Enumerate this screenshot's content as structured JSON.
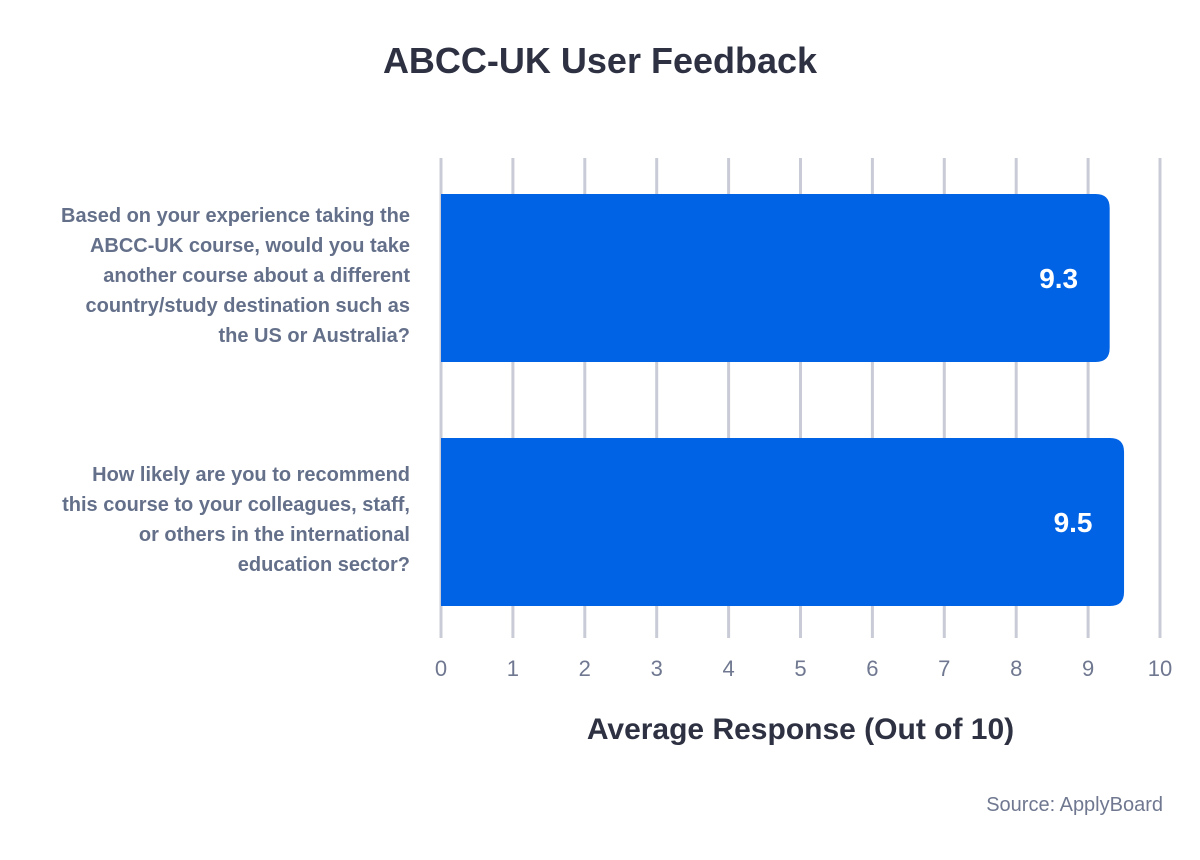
{
  "chart_data": {
    "type": "bar",
    "orientation": "horizontal",
    "title": "ABCC-UK User Feedback",
    "xlabel": "Average Response (Out of 10)",
    "ylabel": "",
    "xlim": [
      0,
      10
    ],
    "ticks": [
      "0",
      "1",
      "2",
      "3",
      "4",
      "5",
      "6",
      "7",
      "8",
      "9",
      "10"
    ],
    "grid": true,
    "categories": [
      "Based on your experience taking the ABCC-UK course, would you take another course about a different country/study destination such as the US or Australia?",
      "How likely are you to recommend this course to your colleagues, staff, or others in the international education sector?"
    ],
    "category_lines": [
      [
        "Based on your experience taking the",
        "ABCC-UK course, would you take",
        "another course about a different",
        "country/study destination such as",
        "the US or Australia?"
      ],
      [
        "How likely are you to recommend",
        "this course to your colleagues, staff,",
        "or others in the international",
        "education sector?"
      ]
    ],
    "values": [
      9.3,
      9.5
    ],
    "data_labels": [
      "9.3",
      "9.5"
    ],
    "source": "Source: ApplyBoard"
  },
  "colors": {
    "bar": "#0063e5",
    "grid": "#c9ccd6",
    "title": "#2d3142",
    "category_text": "#64708a",
    "tick_text": "#6f7890",
    "data_label": "#ffffff"
  }
}
